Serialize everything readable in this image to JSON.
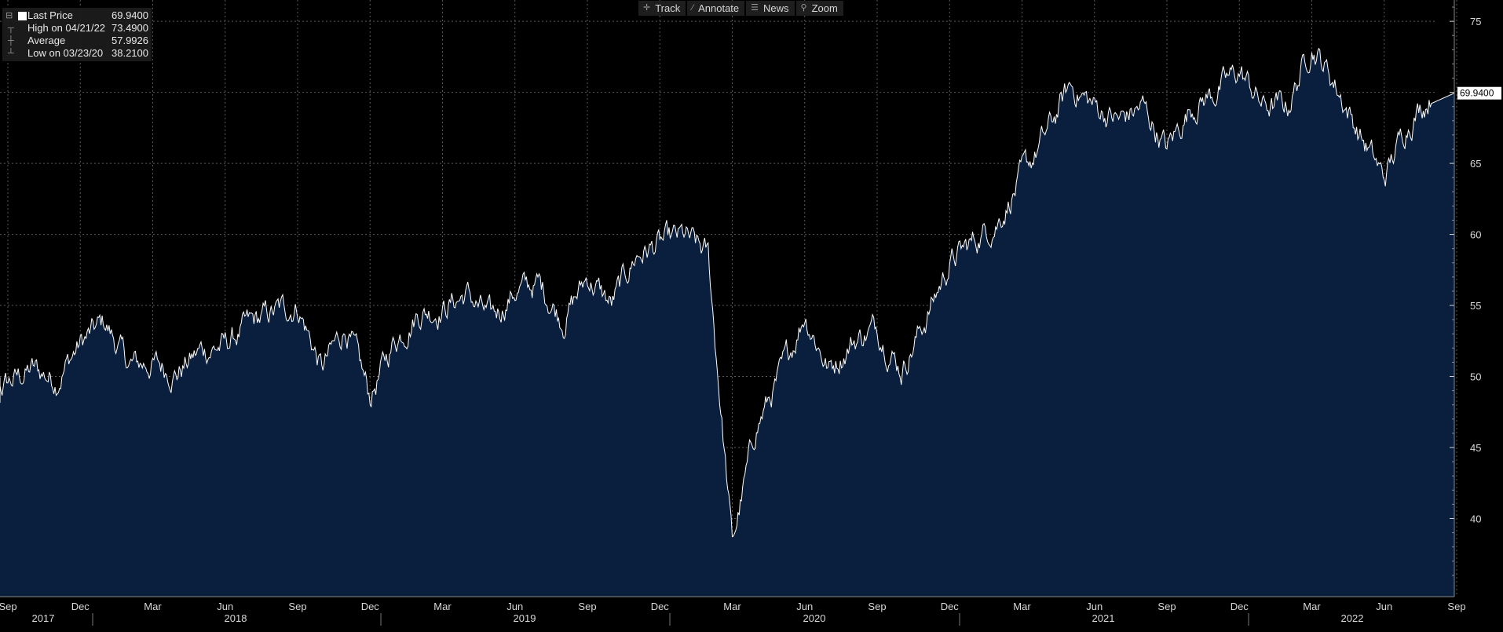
{
  "toolbar": {
    "buttons": [
      {
        "label": "Track",
        "icon": "crosshair-icon"
      },
      {
        "label": "Annotate",
        "icon": "pencil-icon"
      },
      {
        "label": "News",
        "icon": "news-icon"
      },
      {
        "label": "Zoom",
        "icon": "magnifier-icon"
      }
    ]
  },
  "legend": {
    "rows": [
      {
        "label": "Last Price",
        "value": "69.9400"
      },
      {
        "label": "High on 04/21/22",
        "value": "73.4900"
      },
      {
        "label": "Average",
        "value": "57.9926"
      },
      {
        "label": "Low on 03/23/20",
        "value": "38.2100"
      }
    ]
  },
  "last_price_tag": "69.9400",
  "colors": {
    "background": "#000000",
    "area_fill": "#0a1f3d",
    "line": "#ffffff",
    "grid": "#5a5a5a",
    "axis_text": "#d8d8d8"
  },
  "chart_data": {
    "type": "area",
    "title": "",
    "xlabel": "",
    "ylabel": "",
    "ylim": [
      34.5,
      76.5
    ],
    "y_ticks": [
      40,
      45,
      50,
      55,
      60,
      65,
      70,
      75
    ],
    "x_month_ticks": [
      "Sep",
      "Dec",
      "Mar",
      "Jun",
      "Sep",
      "Dec",
      "Mar",
      "Jun",
      "Sep",
      "Dec",
      "Mar",
      "Jun",
      "Sep",
      "Dec",
      "Mar",
      "Jun",
      "Sep",
      "Dec",
      "Mar",
      "Jun",
      "Sep"
    ],
    "x_year_labels": [
      "2017",
      "2018",
      "2019",
      "2020",
      "2021",
      "2022"
    ],
    "grid": true,
    "legend_placement": "top-left",
    "series": [
      {
        "name": "Last Price",
        "x": [
          "2017-08",
          "2017-09",
          "2017-10",
          "2017-11",
          "2017-12",
          "2018-01",
          "2018-02",
          "2018-03",
          "2018-04",
          "2018-05",
          "2018-06",
          "2018-07",
          "2018-08",
          "2018-09",
          "2018-10",
          "2018-11",
          "2018-12",
          "2019-01",
          "2019-02",
          "2019-03",
          "2019-04",
          "2019-05",
          "2019-06",
          "2019-07",
          "2019-08",
          "2019-09",
          "2019-10",
          "2019-11",
          "2019-12",
          "2020-01",
          "2020-02",
          "2020-03",
          "2020-04",
          "2020-05",
          "2020-06",
          "2020-07",
          "2020-08",
          "2020-09",
          "2020-10",
          "2020-11",
          "2020-12",
          "2021-01",
          "2021-02",
          "2021-03",
          "2021-04",
          "2021-05",
          "2021-06",
          "2021-07",
          "2021-08",
          "2021-09",
          "2021-10",
          "2021-11",
          "2021-12",
          "2022-01",
          "2022-02",
          "2022-03",
          "2022-04",
          "2022-05",
          "2022-06",
          "2022-07",
          "2022-08"
        ],
        "values": [
          48.2,
          49.5,
          50.5,
          49.8,
          52.3,
          53.8,
          50.8,
          50.9,
          50.3,
          51.8,
          52.2,
          53.6,
          54.5,
          55.0,
          50.5,
          53.5,
          48.5,
          52.5,
          54.5,
          54.8,
          55.8,
          54.0,
          56.0,
          56.5,
          54.0,
          57.0,
          55.0,
          58.5,
          59.3,
          59.8,
          58.5,
          38.2,
          46.5,
          50.0,
          54.5,
          50.5,
          52.5,
          53.5,
          50.5,
          54.0,
          58.0,
          59.5,
          61.0,
          64.0,
          67.0,
          70.5,
          69.0,
          68.0,
          69.0,
          66.0,
          69.0,
          70.0,
          71.5,
          69.0,
          69.0,
          73.4,
          70.5,
          67.0,
          63.9,
          68.0,
          69.94
        ]
      }
    ]
  }
}
